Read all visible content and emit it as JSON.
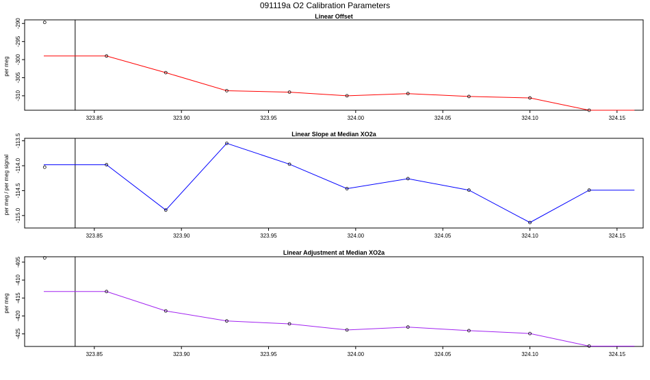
{
  "figure": {
    "title": "091119a   O2 Calibration Parameters"
  },
  "chart_data": [
    {
      "type": "line",
      "title": "Linear Offset",
      "xlabel": "",
      "ylabel": "per meg",
      "line_color": "#ff0000",
      "xlim": [
        323.81,
        324.165
      ],
      "ylim": [
        -314.0,
        -289.0
      ],
      "x_ticks": [
        "323.85",
        "323.90",
        "323.95",
        "324.00",
        "324.05",
        "324.10",
        "324.15"
      ],
      "y_ticks": [
        "-290",
        "-295",
        "-300",
        "-305",
        "-310"
      ],
      "reference_point": {
        "x": 323.8215,
        "y": -289.7
      },
      "vertical_line_x": 323.839,
      "line_start_x": 323.821,
      "line_end_x": 324.16,
      "x": [
        323.857,
        323.891,
        323.926,
        323.962,
        323.995,
        324.03,
        324.065,
        324.1,
        324.134
      ],
      "values": [
        -299.0,
        -303.6,
        -308.6,
        -309.0,
        -310.0,
        -309.4,
        -310.2,
        -310.6,
        -314.0
      ]
    },
    {
      "type": "line",
      "title": "Linear Slope at Median XO2a",
      "xlabel": "",
      "ylabel": "per meg / per meg signal",
      "line_color": "#0000ff",
      "xlim": [
        323.81,
        324.165
      ],
      "ylim": [
        -115.25,
        -113.45
      ],
      "x_ticks": [
        "323.85",
        "323.90",
        "323.95",
        "324.00",
        "324.05",
        "324.10",
        "324.15"
      ],
      "y_ticks": [
        "-113.5",
        "-114.0",
        "-114.5",
        "-115.0"
      ],
      "reference_point": {
        "x": 323.8215,
        "y": -114.03
      },
      "vertical_line_x": 323.839,
      "line_start_x": 323.821,
      "line_end_x": 324.16,
      "x": [
        323.857,
        323.891,
        323.926,
        323.962,
        323.995,
        324.03,
        324.065,
        324.1,
        324.134
      ],
      "values": [
        -113.98,
        -114.89,
        -113.55,
        -113.97,
        -114.46,
        -114.26,
        -114.49,
        -115.14,
        -114.49
      ]
    },
    {
      "type": "line",
      "title": "Linear Adjustment at Median XO2a",
      "xlabel": "",
      "ylabel": "per meg",
      "line_color": "#a020f0",
      "xlim": [
        323.81,
        324.165
      ],
      "ylim": [
        -428.5,
        -403.5
      ],
      "x_ticks": [
        "323.85",
        "323.90",
        "323.95",
        "324.00",
        "324.05",
        "324.10",
        "324.15"
      ],
      "y_ticks": [
        "-405",
        "-410",
        "-415",
        "-420",
        "-425"
      ],
      "reference_point": {
        "x": 323.8215,
        "y": -403.8
      },
      "vertical_line_x": 323.839,
      "line_start_x": 323.821,
      "line_end_x": 324.16,
      "x": [
        323.857,
        323.891,
        323.926,
        323.962,
        323.995,
        324.03,
        324.065,
        324.1,
        324.134
      ],
      "values": [
        -413.2,
        -418.6,
        -421.4,
        -422.2,
        -423.9,
        -423.1,
        -424.1,
        -424.9,
        -428.4
      ]
    }
  ]
}
